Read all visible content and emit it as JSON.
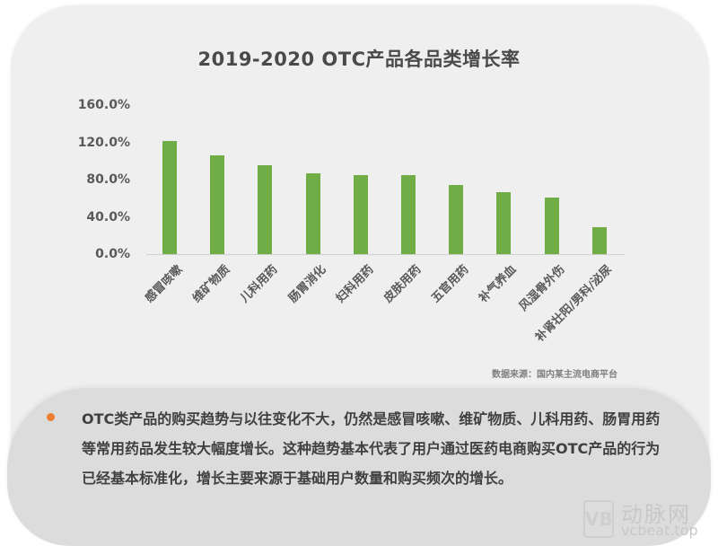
{
  "chart_data": {
    "type": "bar",
    "title": "2019-2020 OTC产品各品类增长率",
    "xlabel": "",
    "ylabel": "",
    "ylim": [
      0,
      160
    ],
    "yticks": [
      "0.0%",
      "40.0%",
      "80.0%",
      "120.0%",
      "160.0%"
    ],
    "grid": false,
    "legend": null,
    "bar_color": "#70ad47",
    "categories": [
      "感冒咳嗽",
      "维矿物质",
      "儿科用药",
      "肠胃消化",
      "妇科用药",
      "皮肤用药",
      "五官用药",
      "补气养血",
      "风湿骨外伤",
      "补肾壮阳/男科/泌尿"
    ],
    "values": [
      121,
      106,
      95,
      87,
      85,
      85,
      74,
      67,
      61,
      29
    ],
    "unit": "%",
    "annotation": "数据来源：国内某主流电商平台"
  },
  "note": {
    "bullet_color": "#ed7d31",
    "text": "OTC类产品的购买趋势与以往变化不大，仍然是感冒咳嗽、维矿物质、儿科用药、肠胃用药等常用药品发生较大幅度增长。这种趋势基本代表了用户通过医药电商购买OTC产品的行为已经基本标准化，增长主要来源于基础用户数量和购买频次的增长。"
  },
  "watermark": {
    "logo": "VB",
    "name": "动脉网",
    "site": "vcbeat.top"
  }
}
